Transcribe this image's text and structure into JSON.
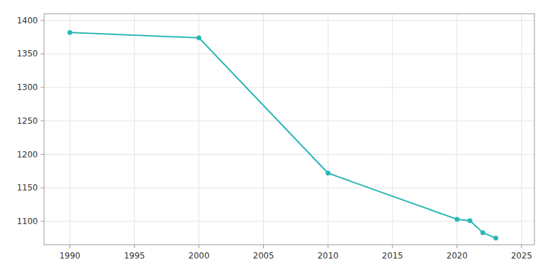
{
  "chart_data": {
    "type": "line",
    "x": [
      1990,
      2000,
      2010,
      2020,
      2021,
      2022,
      2023
    ],
    "values": [
      1382,
      1374,
      1172,
      1103,
      1101,
      1083,
      1075
    ],
    "color": "#2ab5b5",
    "marker": "circle",
    "xlim": [
      1988,
      2026
    ],
    "ylim": [
      1065,
      1410
    ],
    "xticks": [
      1990,
      1995,
      2000,
      2005,
      2010,
      2015,
      2020,
      2025
    ],
    "yticks": [
      1100,
      1150,
      1200,
      1250,
      1300,
      1350,
      1400
    ],
    "grid": true
  }
}
